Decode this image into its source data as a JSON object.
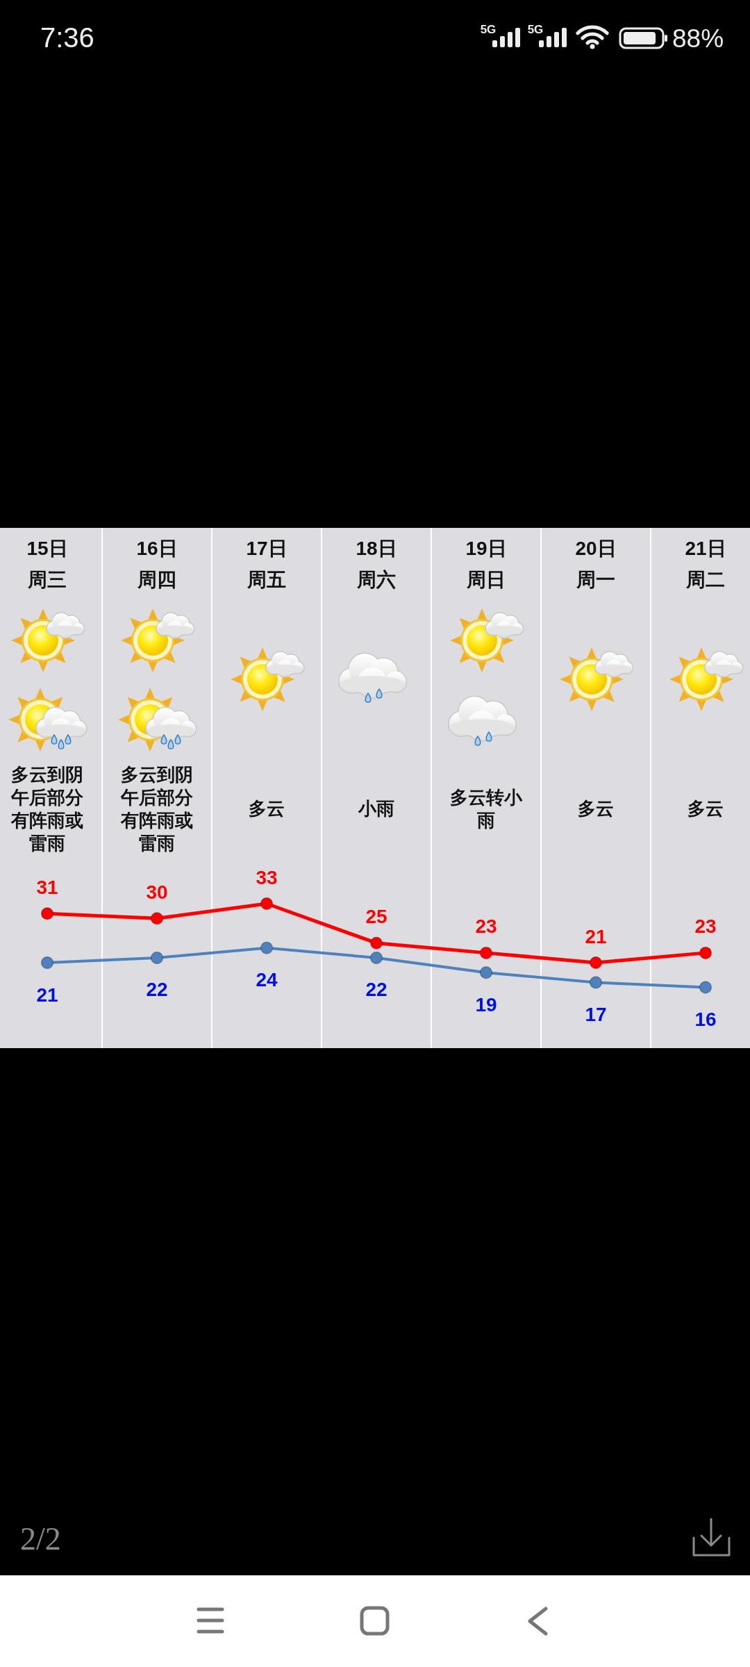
{
  "chart_data": {
    "type": "line",
    "categories": [
      "15日周三",
      "16日周四",
      "17日周五",
      "18日周六",
      "19日周日",
      "20日周一",
      "21日周二"
    ],
    "series": [
      {
        "color": "#ff0000",
        "values": [
          31,
          30,
          33,
          25,
          23,
          21,
          23
        ]
      },
      {
        "color": "#4f81bd",
        "values": [
          21,
          22,
          24,
          22,
          19,
          17,
          16
        ]
      }
    ],
    "marker": "circle",
    "data_labels": true,
    "grid": "x",
    "annotations": [
      "7:36",
      "5G",
      "5G",
      "88%",
      "多云到阴午后部分有阵雨或雷雨",
      "多云到阴午后部分有阵雨或雷雨",
      "多云",
      "小雨",
      "多云转小雨",
      "多云",
      "多云",
      "2/2"
    ]
  }
}
